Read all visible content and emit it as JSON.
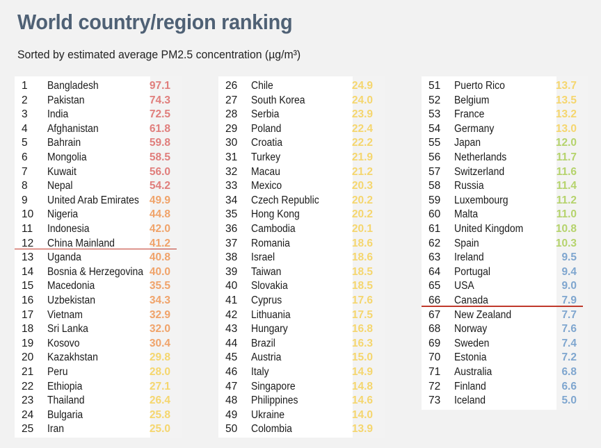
{
  "title": "World country/region ranking",
  "subtitle": "Sorted by estimated average PM2.5 concentration (µg/m³)",
  "colors": {
    "red": "#e07e7c",
    "orange": "#f0a36a",
    "yellow": "#f5d66e",
    "green": "#b5d36c",
    "blue": "#7fa6cf",
    "highlight_line": "#c0392b"
  },
  "chart_data": {
    "type": "table",
    "columns": [
      "rank",
      "country",
      "pm25"
    ],
    "highlighted": [
      "China Mainland",
      "Canada"
    ],
    "rows": [
      {
        "rank": "1",
        "country": "Bangladesh",
        "value": "97.1"
      },
      {
        "rank": "2",
        "country": "Pakistan",
        "value": "74.3"
      },
      {
        "rank": "3",
        "country": "India",
        "value": "72.5"
      },
      {
        "rank": "4",
        "country": "Afghanistan",
        "value": "61.8"
      },
      {
        "rank": "5",
        "country": "Bahrain",
        "value": "59.8"
      },
      {
        "rank": "6",
        "country": "Mongolia",
        "value": "58.5"
      },
      {
        "rank": "7",
        "country": "Kuwait",
        "value": "56.0"
      },
      {
        "rank": "8",
        "country": "Nepal",
        "value": "54.2"
      },
      {
        "rank": "9",
        "country": "United Arab Emirates",
        "value": "49.9"
      },
      {
        "rank": "10",
        "country": "Nigeria",
        "value": "44.8"
      },
      {
        "rank": "11",
        "country": "Indonesia",
        "value": "42.0"
      },
      {
        "rank": "12",
        "country": "China Mainland",
        "value": "41.2"
      },
      {
        "rank": "13",
        "country": "Uganda",
        "value": "40.8"
      },
      {
        "rank": "14",
        "country": "Bosnia & Herzegovina",
        "value": "40.0"
      },
      {
        "rank": "15",
        "country": "Macedonia",
        "value": "35.5"
      },
      {
        "rank": "16",
        "country": "Uzbekistan",
        "value": "34.3"
      },
      {
        "rank": "17",
        "country": "Vietnam",
        "value": "32.9"
      },
      {
        "rank": "18",
        "country": "Sri Lanka",
        "value": "32.0"
      },
      {
        "rank": "19",
        "country": "Kosovo",
        "value": "30.4"
      },
      {
        "rank": "20",
        "country": "Kazakhstan",
        "value": "29.8"
      },
      {
        "rank": "21",
        "country": "Peru",
        "value": "28.0"
      },
      {
        "rank": "22",
        "country": "Ethiopia",
        "value": "27.1"
      },
      {
        "rank": "23",
        "country": "Thailand",
        "value": "26.4"
      },
      {
        "rank": "24",
        "country": "Bulgaria",
        "value": "25.8"
      },
      {
        "rank": "25",
        "country": "Iran",
        "value": "25.0"
      },
      {
        "rank": "26",
        "country": "Chile",
        "value": "24.9"
      },
      {
        "rank": "27",
        "country": "South Korea",
        "value": "24.0"
      },
      {
        "rank": "28",
        "country": "Serbia",
        "value": "23.9"
      },
      {
        "rank": "29",
        "country": "Poland",
        "value": "22.4"
      },
      {
        "rank": "30",
        "country": "Croatia",
        "value": "22.2"
      },
      {
        "rank": "31",
        "country": "Turkey",
        "value": "21.9"
      },
      {
        "rank": "32",
        "country": "Macau",
        "value": "21.2"
      },
      {
        "rank": "33",
        "country": "Mexico",
        "value": "20.3"
      },
      {
        "rank": "34",
        "country": "Czech Republic",
        "value": "20.2"
      },
      {
        "rank": "35",
        "country": "Hong Kong",
        "value": "20.2"
      },
      {
        "rank": "36",
        "country": "Cambodia",
        "value": "20.1"
      },
      {
        "rank": "37",
        "country": "Romania",
        "value": "18.6"
      },
      {
        "rank": "38",
        "country": "Israel",
        "value": "18.6"
      },
      {
        "rank": "39",
        "country": "Taiwan",
        "value": "18.5"
      },
      {
        "rank": "40",
        "country": "Slovakia",
        "value": "18.5"
      },
      {
        "rank": "41",
        "country": "Cyprus",
        "value": "17.6"
      },
      {
        "rank": "42",
        "country": "Lithuania",
        "value": "17.5"
      },
      {
        "rank": "43",
        "country": "Hungary",
        "value": "16.8"
      },
      {
        "rank": "44",
        "country": "Brazil",
        "value": "16.3"
      },
      {
        "rank": "45",
        "country": "Austria",
        "value": "15.0"
      },
      {
        "rank": "46",
        "country": "Italy",
        "value": "14.9"
      },
      {
        "rank": "47",
        "country": "Singapore",
        "value": "14.8"
      },
      {
        "rank": "48",
        "country": "Philippines",
        "value": "14.6"
      },
      {
        "rank": "49",
        "country": "Ukraine",
        "value": "14.0"
      },
      {
        "rank": "50",
        "country": "Colombia",
        "value": "13.9"
      },
      {
        "rank": "51",
        "country": "Puerto Rico",
        "value": "13.7"
      },
      {
        "rank": "52",
        "country": "Belgium",
        "value": "13.5"
      },
      {
        "rank": "53",
        "country": "France",
        "value": "13.2"
      },
      {
        "rank": "54",
        "country": "Germany",
        "value": "13.0"
      },
      {
        "rank": "55",
        "country": "Japan",
        "value": "12.0"
      },
      {
        "rank": "56",
        "country": "Netherlands",
        "value": "11.7"
      },
      {
        "rank": "57",
        "country": "Switzerland",
        "value": "11.6"
      },
      {
        "rank": "58",
        "country": "Russia",
        "value": "11.4"
      },
      {
        "rank": "59",
        "country": "Luxembourg",
        "value": "11.2"
      },
      {
        "rank": "60",
        "country": "Malta",
        "value": "11.0"
      },
      {
        "rank": "61",
        "country": "United Kingdom",
        "value": "10.8"
      },
      {
        "rank": "62",
        "country": "Spain",
        "value": "10.3"
      },
      {
        "rank": "63",
        "country": "Ireland",
        "value": "9.5"
      },
      {
        "rank": "64",
        "country": "Portugal",
        "value": "9.4"
      },
      {
        "rank": "65",
        "country": "USA",
        "value": "9.0"
      },
      {
        "rank": "66",
        "country": "Canada",
        "value": "7.9"
      },
      {
        "rank": "67",
        "country": "New Zealand",
        "value": "7.7"
      },
      {
        "rank": "68",
        "country": "Norway",
        "value": "7.6"
      },
      {
        "rank": "69",
        "country": "Sweden",
        "value": "7.4"
      },
      {
        "rank": "70",
        "country": "Estonia",
        "value": "7.2"
      },
      {
        "rank": "71",
        "country": "Australia",
        "value": "6.8"
      },
      {
        "rank": "72",
        "country": "Finland",
        "value": "6.6"
      },
      {
        "rank": "73",
        "country": "Iceland",
        "value": "5.0"
      }
    ]
  }
}
